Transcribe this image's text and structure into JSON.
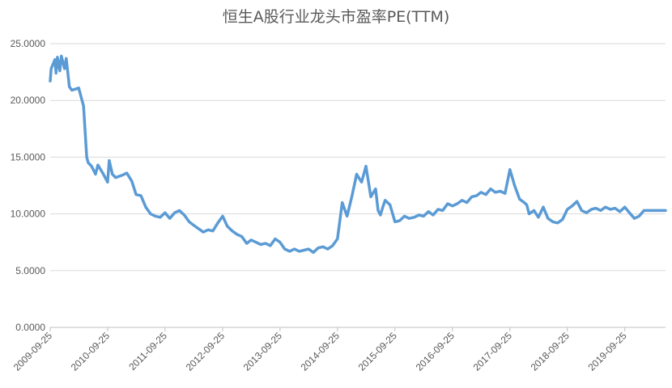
{
  "chart_data": {
    "type": "line",
    "title": "恒生A股行业龙头市盈率PE(TTM)",
    "xlabel": "",
    "ylabel": "",
    "ylim": [
      0,
      25
    ],
    "yticks": [
      "0.0000",
      "5.0000",
      "10.0000",
      "15.0000",
      "20.0000",
      "25.0000"
    ],
    "xticks": [
      "2009-09-25",
      "2010-09-25",
      "2011-09-25",
      "2012-09-25",
      "2013-09-25",
      "2014-09-25",
      "2015-09-25",
      "2016-09-25",
      "2017-09-25",
      "2018-09-25",
      "2019-09-25"
    ],
    "grid": true,
    "legend": "none",
    "line_color": "#5B9BD5",
    "series": [
      {
        "x": [
          "2009-09-25",
          "2009-10-01",
          "2009-10-25",
          "2009-11-01",
          "2009-11-10",
          "2009-11-25",
          "2009-12-05",
          "2009-12-25",
          "2010-01-05",
          "2010-01-25",
          "2010-02-10",
          "2010-03-25",
          "2010-04-25",
          "2010-05-15",
          "2010-05-25",
          "2010-06-15",
          "2010-07-10",
          "2010-07-25",
          "2010-08-25",
          "2010-09-25",
          "2010-10-05",
          "2010-10-25",
          "2010-11-15",
          "2010-12-25",
          "2011-01-25",
          "2011-02-25",
          "2011-03-25",
          "2011-04-25",
          "2011-05-25",
          "2011-06-25",
          "2011-07-25",
          "2011-08-25",
          "2011-09-25",
          "2011-10-25",
          "2011-11-25",
          "2011-12-25",
          "2012-01-25",
          "2012-02-25",
          "2012-03-25",
          "2012-04-25",
          "2012-05-25",
          "2012-06-25",
          "2012-07-25",
          "2012-08-25",
          "2012-09-25",
          "2012-10-25",
          "2012-11-25",
          "2012-12-25",
          "2013-01-25",
          "2013-02-25",
          "2013-03-25",
          "2013-04-25",
          "2013-05-25",
          "2013-06-25",
          "2013-07-25",
          "2013-08-25",
          "2013-09-25",
          "2013-10-25",
          "2013-11-25",
          "2013-12-25",
          "2014-01-25",
          "2014-02-25",
          "2014-03-25",
          "2014-04-25",
          "2014-05-25",
          "2014-06-25",
          "2014-07-25",
          "2014-08-25",
          "2014-09-25",
          "2014-10-25",
          "2014-11-25",
          "2014-12-25",
          "2015-01-25",
          "2015-02-25",
          "2015-03-25",
          "2015-04-25",
          "2015-05-25",
          "2015-06-10",
          "2015-06-25",
          "2015-07-10",
          "2015-07-25",
          "2015-08-25",
          "2015-09-25",
          "2015-10-25",
          "2015-11-25",
          "2015-12-25",
          "2016-01-25",
          "2016-02-25",
          "2016-03-25",
          "2016-04-25",
          "2016-05-25",
          "2016-06-25",
          "2016-07-25",
          "2016-08-25",
          "2016-09-25",
          "2016-10-25",
          "2016-11-25",
          "2016-12-25",
          "2017-01-25",
          "2017-02-25",
          "2017-03-25",
          "2017-04-25",
          "2017-05-25",
          "2017-06-25",
          "2017-07-25",
          "2017-08-25",
          "2017-09-25",
          "2017-10-25",
          "2017-11-25",
          "2017-12-25",
          "2018-01-10",
          "2018-01-25",
          "2018-02-25",
          "2018-03-25",
          "2018-04-25",
          "2018-05-25",
          "2018-06-25",
          "2018-07-25",
          "2018-08-25",
          "2018-09-25",
          "2018-10-25",
          "2018-11-25",
          "2018-12-25",
          "2019-01-25",
          "2019-02-25",
          "2019-03-25",
          "2019-04-25",
          "2019-05-25",
          "2019-06-25",
          "2019-07-25",
          "2019-08-25",
          "2019-09-25",
          "2019-10-25",
          "2019-11-25",
          "2019-12-25",
          "2020-01-25",
          "2020-02-25",
          "2020-03-25",
          "2020-04-25",
          "2020-05-25",
          "2020-06-10"
        ],
        "values": [
          21.7,
          22.8,
          23.6,
          22.4,
          23.8,
          22.6,
          23.9,
          22.8,
          23.7,
          21.2,
          20.9,
          21.1,
          19.5,
          15.0,
          14.5,
          14.2,
          13.5,
          14.3,
          13.6,
          12.8,
          14.7,
          13.5,
          13.2,
          13.4,
          13.6,
          12.9,
          11.7,
          11.6,
          10.6,
          10.0,
          9.8,
          9.7,
          10.1,
          9.6,
          10.1,
          10.3,
          9.9,
          9.3,
          9.0,
          8.7,
          8.4,
          8.6,
          8.5,
          9.2,
          9.8,
          8.9,
          8.5,
          8.2,
          8.0,
          7.4,
          7.7,
          7.5,
          7.3,
          7.4,
          7.2,
          7.8,
          7.5,
          6.9,
          6.7,
          6.9,
          6.7,
          6.8,
          6.9,
          6.6,
          7.0,
          7.1,
          6.9,
          7.2,
          7.8,
          11.0,
          9.8,
          11.5,
          13.5,
          12.8,
          14.2,
          11.5,
          12.2,
          10.3,
          9.9,
          10.6,
          11.2,
          10.8,
          9.3,
          9.4,
          9.8,
          9.6,
          9.7,
          9.9,
          9.8,
          10.2,
          9.9,
          10.4,
          10.3,
          10.9,
          10.7,
          10.9,
          11.2,
          11.0,
          11.5,
          11.6,
          11.9,
          11.7,
          12.2,
          11.9,
          12.0,
          11.8,
          13.9,
          12.5,
          11.3,
          11.0,
          10.8,
          10.0,
          10.3,
          9.7,
          10.6,
          9.6,
          9.3,
          9.2,
          9.5,
          10.4,
          10.7,
          11.1,
          10.3,
          10.1,
          10.4,
          10.5,
          10.3,
          10.6,
          10.4,
          10.5,
          10.2,
          10.6,
          10.1,
          9.6,
          9.8,
          10.3,
          10.3,
          10.3,
          10.3,
          10.3,
          10.3
        ]
      }
    ]
  }
}
